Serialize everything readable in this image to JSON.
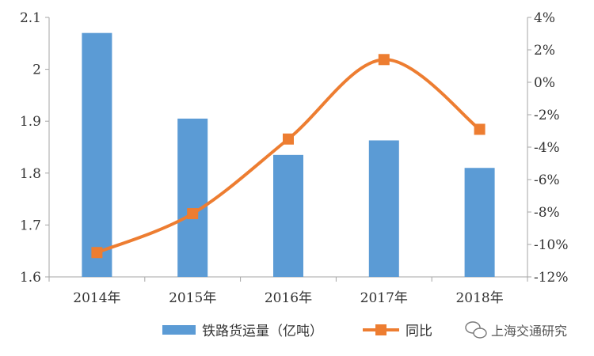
{
  "chart_data": {
    "type": "bar",
    "categories": [
      "2014年",
      "2015年",
      "2016年",
      "2017年",
      "2018年"
    ],
    "series": [
      {
        "name": "铁路货运量（亿吨）",
        "type": "bar",
        "axis": "left",
        "color": "#5B9BD5",
        "values": [
          2.07,
          1.905,
          1.835,
          1.863,
          1.81
        ]
      },
      {
        "name": "同比",
        "type": "line",
        "axis": "right",
        "color": "#ED7D31",
        "marker": "square",
        "smooth": true,
        "values": [
          -10.5,
          -8.1,
          -3.5,
          1.4,
          -2.9
        ]
      }
    ],
    "left_axis": {
      "ylim": [
        1.6,
        2.1
      ],
      "ticks": [
        1.6,
        1.7,
        1.8,
        1.9,
        2.0,
        2.1
      ],
      "tick_labels": [
        "1.6",
        "1.7",
        "1.8",
        "1.9",
        "2",
        "2.1"
      ]
    },
    "right_axis": {
      "ylim": [
        -12,
        4
      ],
      "ticks": [
        -12,
        -10,
        -8,
        -6,
        -4,
        -2,
        0,
        2,
        4
      ],
      "tick_labels": [
        "-12%",
        "-10%",
        "-8%",
        "-6%",
        "-4%",
        "-2%",
        "0%",
        "2%",
        "4%"
      ]
    },
    "grid": false,
    "legend_position": "bottom"
  },
  "watermark": {
    "text": "上海交通研究",
    "icon": "wechat-icon"
  }
}
